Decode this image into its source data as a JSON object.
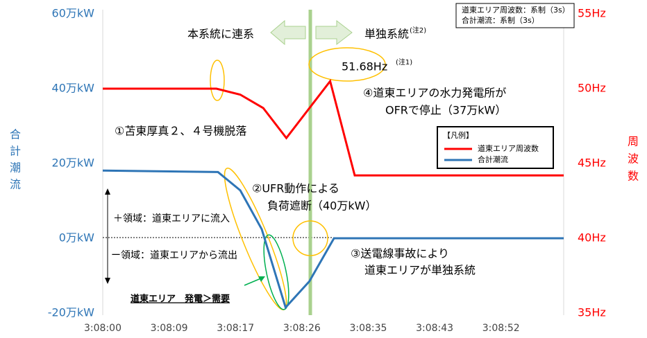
{
  "chart_data": {
    "type": "line",
    "x_ticks_note": null,
    "xlim": [
      0,
      60
    ],
    "xticks": [
      {
        "value": 0,
        "label": "3:08:00"
      },
      {
        "value": 8.64,
        "label": "3:08:09"
      },
      {
        "value": 17.28,
        "label": "3:08:17"
      },
      {
        "value": 25.92,
        "label": "3:08:26"
      },
      {
        "value": 34.56,
        "label": "3:08:35"
      },
      {
        "value": 43.2,
        "label": "3:08:43"
      },
      {
        "value": 51.84,
        "label": "3:08:52"
      }
    ],
    "ylim": [
      -20,
      60
    ],
    "yticks": [
      {
        "value": -20,
        "label": "-20万kW"
      },
      {
        "value": 0,
        "label": "0万kW"
      },
      {
        "value": 20,
        "label": "20万kW"
      },
      {
        "value": 40,
        "label": "40万kW"
      },
      {
        "value": 60,
        "label": "60万kW"
      }
    ],
    "y2lim": [
      35,
      55
    ],
    "y2ticks": [
      {
        "value": 35,
        "label": "35Hz"
      },
      {
        "value": 40,
        "label": "40Hz"
      },
      {
        "value": 45,
        "label": "45Hz"
      },
      {
        "value": 50,
        "label": "50Hz"
      },
      {
        "value": 55,
        "label": "55Hz"
      }
    ],
    "ylabel": [
      "合",
      "計",
      "潮",
      "流"
    ],
    "y2label": [
      "周",
      "波",
      "数"
    ],
    "legend_title": "【凡例】",
    "series": [
      {
        "name": "道東エリア周波数",
        "color": "#ff0000",
        "axis": "y2",
        "x": [
          0,
          14.8,
          17.9,
          20.9,
          23.9,
          29.6,
          32.8,
          60
        ],
        "values": [
          50,
          50,
          49.6,
          48.7,
          46.7,
          50.5,
          44.2,
          44.2
        ]
      },
      {
        "name": "合計潮流",
        "color": "#2e75b6",
        "x": [
          0,
          15.0,
          17.9,
          20.7,
          23.8,
          26.9,
          30.1,
          60
        ],
        "values": [
          18.1,
          17.7,
          12.8,
          2.4,
          -18.5,
          -11.5,
          0,
          0
        ]
      }
    ],
    "notes": [
      "道東エリア周波数：系制（3s）",
      "合計潮流：系制（3s）"
    ],
    "annotations": [
      "本系統に連系",
      "単独系統",
      "(注2)",
      "51.68Hz",
      "(注1)",
      "④道東エリアの水力発電所が",
      "OFRで停止（37万kW）",
      "①苫東厚真２、４号機脱落",
      "②UFR動作による",
      "負荷遮断（40万kW）",
      "③送電線事故により",
      "道東エリアが単独系統",
      "＋領域：道東エリアに流入",
      "ー領域：道東エリアから流出",
      "道東エリア　発電＞需要"
    ]
  }
}
